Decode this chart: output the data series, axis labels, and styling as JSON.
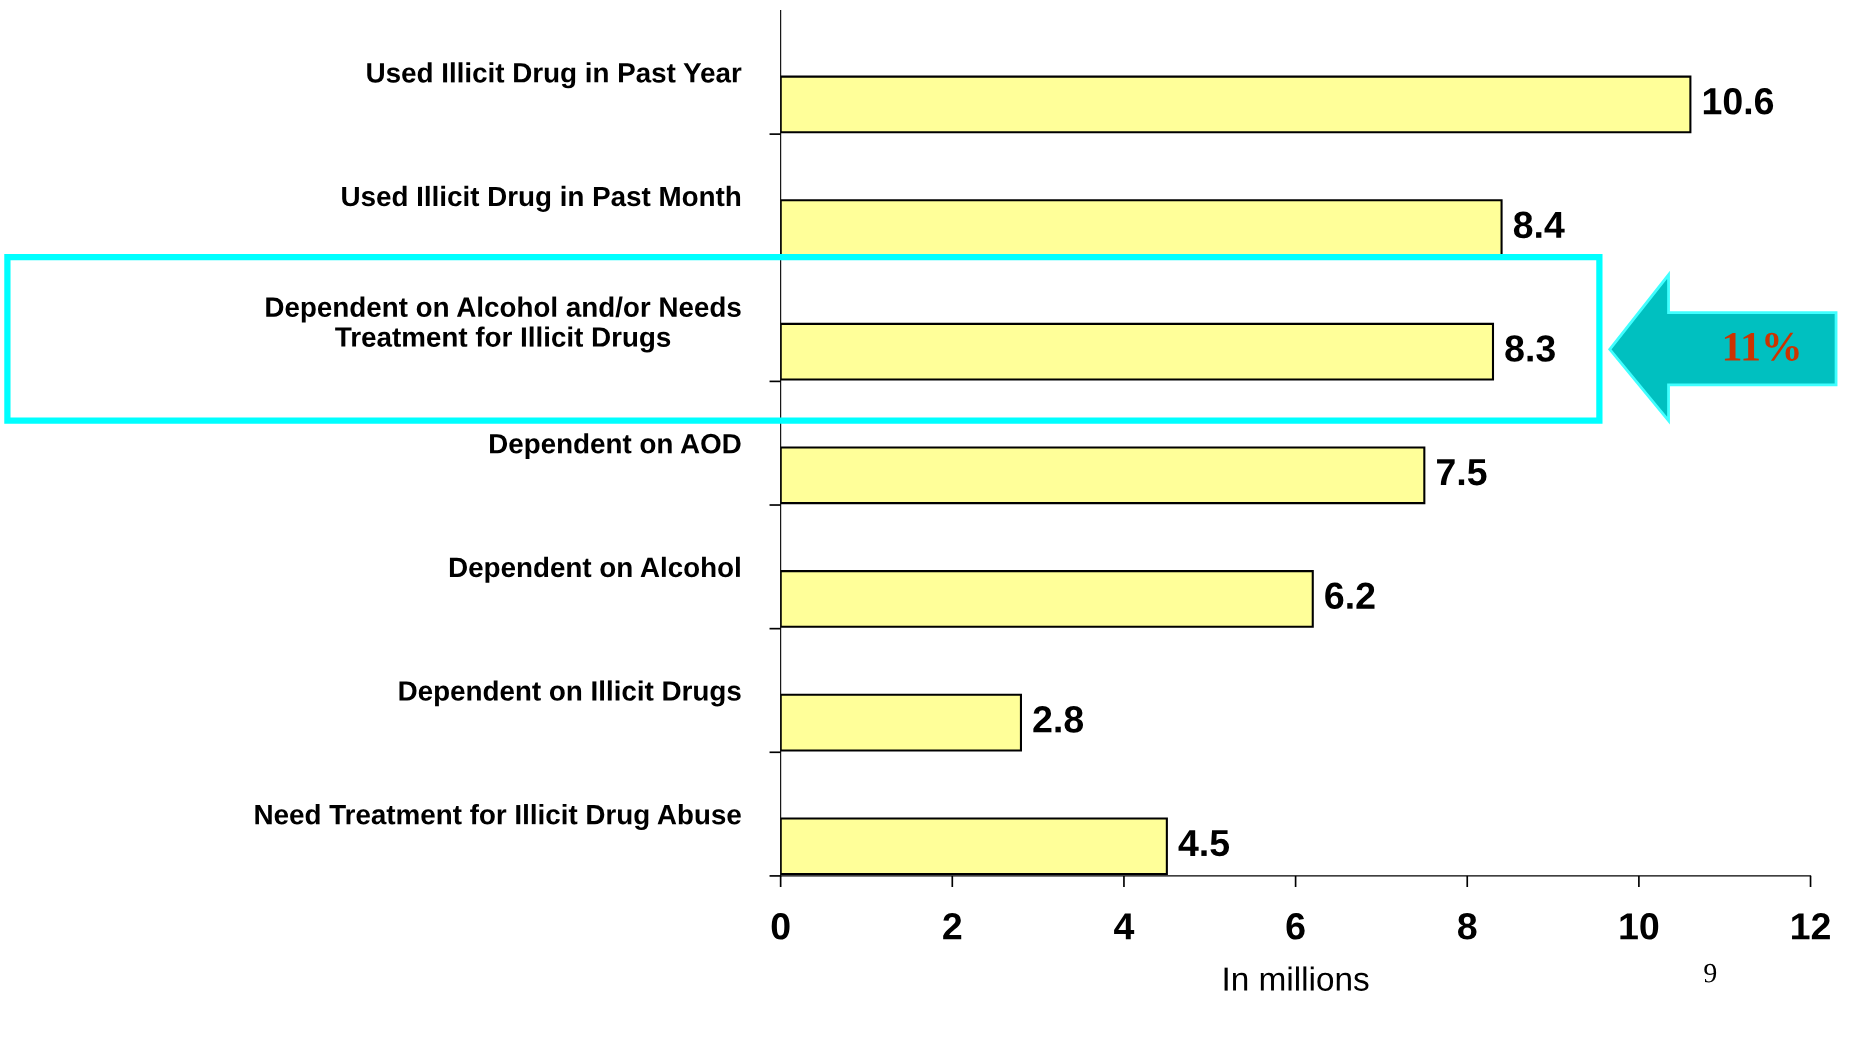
{
  "chart_data": {
    "type": "bar",
    "orientation": "horizontal",
    "categories": [
      "Used Illicit Drug in Past Year",
      "Used Illicit Drug in Past Month",
      "Dependent on Alcohol and/or Needs\nTreatment for Illicit Drugs",
      "Dependent on AOD",
      "Dependent on Alcohol",
      "Dependent on Illicit Drugs",
      "Need Treatment for Illicit Drug Abuse"
    ],
    "values": [
      10.6,
      8.4,
      8.3,
      7.5,
      6.2,
      2.8,
      4.5
    ],
    "color": "#ffff99",
    "xlim": [
      0,
      12
    ],
    "xticks": [
      0,
      2,
      4,
      6,
      8,
      10,
      12
    ],
    "xlabel": "In millions",
    "data_labels": true,
    "annotations": [
      "11%",
      "9"
    ]
  }
}
